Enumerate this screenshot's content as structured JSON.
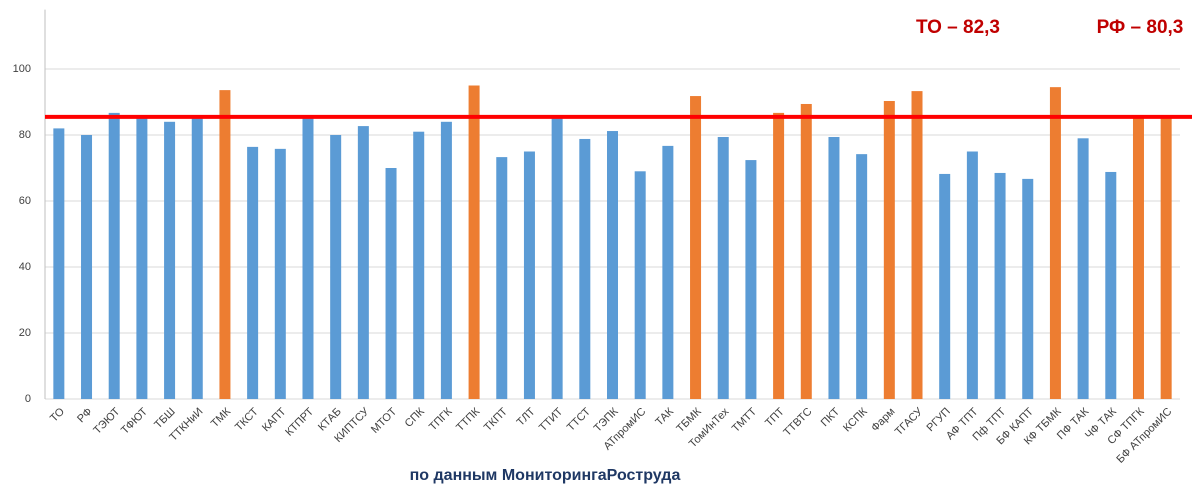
{
  "chart_data": {
    "type": "bar",
    "categories": [
      "ТО",
      "РФ",
      "ТЭЮТ",
      "ТФЮТ",
      "ТБШ",
      "ТТКНиИ",
      "ТМК",
      "ТКСТ",
      "КАПТ",
      "КТПРТ",
      "КТАБ",
      "КИПТСУ",
      "МТОТ",
      "СПК",
      "ТПГК",
      "ТТПК",
      "ТКПТ",
      "ТЛТ",
      "ТТИТ",
      "ТТСТ",
      "ТЭПК",
      "АТпромИС",
      "ТАК",
      "ТБМК",
      "ТомИнТех",
      "ТМТТ",
      "ТПТ",
      "ТТВТС",
      "ПКТ",
      "КСПК",
      "Фарм",
      "ТГАСУ",
      "РГУП",
      "АФ ТПТ",
      "Пф ТПТ",
      "БФ КАПТ",
      "КФ ТБМК",
      "ПФ ТАК",
      "ЧФ ТАК",
      "СФ ТПГК",
      "БФ АТпромИС"
    ],
    "values": [
      82,
      80,
      86.7,
      85,
      84,
      85,
      93.6,
      76.4,
      75.8,
      86,
      80,
      82.7,
      70,
      81,
      84,
      95,
      73.3,
      75,
      85.5,
      78.8,
      81.2,
      69,
      76.7,
      91.8,
      79.4,
      72.4,
      86.7,
      89.4,
      79.4,
      74.2,
      90.3,
      93.3,
      68.2,
      75,
      68.5,
      66.7,
      94.5,
      79,
      68.8,
      85.5,
      86
    ],
    "colors": [
      "#5b9bd5",
      "#5b9bd5",
      "#5b9bd5",
      "#5b9bd5",
      "#5b9bd5",
      "#5b9bd5",
      "#ed7d31",
      "#5b9bd5",
      "#5b9bd5",
      "#5b9bd5",
      "#5b9bd5",
      "#5b9bd5",
      "#5b9bd5",
      "#5b9bd5",
      "#5b9bd5",
      "#ed7d31",
      "#5b9bd5",
      "#5b9bd5",
      "#5b9bd5",
      "#5b9bd5",
      "#5b9bd5",
      "#5b9bd5",
      "#5b9bd5",
      "#ed7d31",
      "#5b9bd5",
      "#5b9bd5",
      "#ed7d31",
      "#ed7d31",
      "#5b9bd5",
      "#5b9bd5",
      "#ed7d31",
      "#ed7d31",
      "#5b9bd5",
      "#5b9bd5",
      "#5b9bd5",
      "#5b9bd5",
      "#ed7d31",
      "#5b9bd5",
      "#5b9bd5",
      "#ed7d31",
      "#ed7d31"
    ],
    "reference_line": 85.5,
    "reference_color": "#ff0000",
    "ylim": [
      0,
      118
    ],
    "yticks": [
      0,
      20,
      40,
      60,
      80,
      100
    ],
    "grid": true,
    "annotations": [
      "ТО – 82,3",
      "РФ – 80,3"
    ],
    "footer": "по данным МониторингаРоструда"
  }
}
